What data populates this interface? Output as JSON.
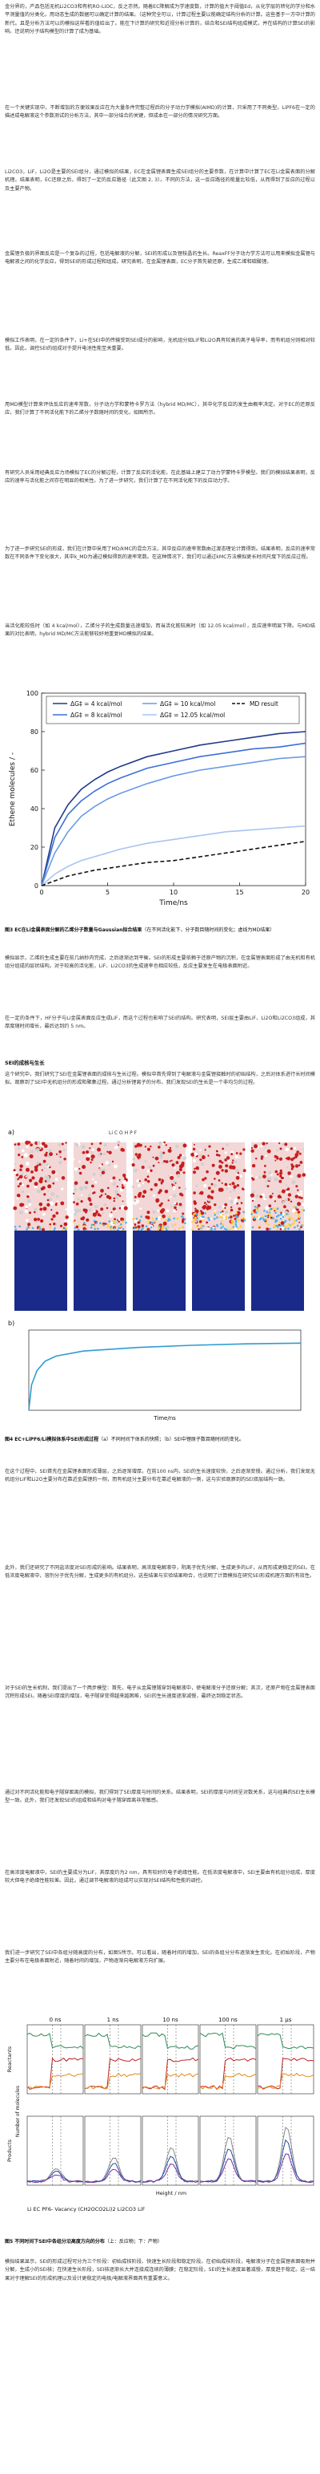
{
  "text": {
    "p1": "金分界的，产品包括无机Li2CO3和有机RO-LiOC，反之亦然。随着EC降解成为学速度数，计算的值大于阈值Ed，从化学层的转化的学分和水平测量值的分类化，用动态生成的数据可以确定计算的结果。（这种完全可以，计算过程主要以能确定结构分析的计算。这些基于一方中计算的新代。且是分析方法可以的模拟这样看的值给出了。能在下计算的研究和近视分析计算的，结合和SEI结构组成模式，并在结构的计算SEI的影响。还说明分子结构模型的计算了成为基础。",
    "p2": "在一个关键实现中，不断增加的方便效果反应在为大量条件完整过程后的分子动力学模拟(AIMD)的计算，只采用了不同类型，LiPF6在一定的描述成电解液这个参数测试的分析方法，其中一部分结合的关键，但成本在一部分的情况研究方面。",
    "p3": "Li2CO3，LiF，Li2O是主要的SEI组分，通过模拟的结果，EC在金属锂表面生成SEI组分的主要参数，在计算中计算了EC在Li金属表面的分解机理。结果表明，EC还原之后，得到了一定的反应路径（此文图 2, 3）。不同的方法，这一反应路径的能量比较低，从而得到了反应的过程以及主要产物。",
    "p4": "金属锂负极的界面反应是一个复杂的过程，包括电解液的分解，SEI的形成以及锂枝晶的生长。ReaxFF分子动力学方法可以用来模拟金属锂与电解液之间的化学反应，得到SEI的形成过程和组成。研究表明，在金属锂表面，EC分子首先被还原，生成乙烯和碳酸锂。",
    "p5": "模拟工作表明，在一定的条件下，Li+在SEI中的传输受到SEI成分的影响，无机组分如LiF和Li2O具有较高的离子电导率，而有机组分则相对较低。因此，调控SEI的组成对于提升电池性能至关重要。",
    "p6": "用MD模型计算来评估反应的速率常数，分子动力学和蒙特卡罗方法（hybrid MD/MC），其中化学反应的发生由概率决定。对于EC的还原反应，我们计算了不同活化能下的乙烯分子数随时间的变化，如图所示。",
    "p7": "有研究人员采用经典反应力场模拟了EC的分解过程，计算了反应的活化能，在此基础上建立了动力学蒙特卡罗模型。我们的模拟结果表明，反应的速率与活化能之间存在明显的相关性。为了进一步研究，我们计算了在不同活化能下的反应动力学。",
    "p8": "为了进一步研究SEI的形成，我们在计算中采用了MD/kMC的混合方法，其中反应的速率常数由过渡态理论计算得到。结果表明，反应的速率常数在不同条件下变化很大，其中k_MD为通过模拟得到的速率常数。在这种情况下，我们可以通过kMC方法模拟更长时间尺度下的反应过程。",
    "p9": "当活化能较低时（如 4 kcal/mol），乙烯分子的生成数量迅速增加，而当活化能较高时（如 12.05 kcal/mol），反应速率明显下降。与MD结果的对比表明，hybrid MD/MC方法能够较好地重复MD模拟的结果。",
    "cap1_bold": "图3 EC在Li金属表面分解的乙烯分子数量与Gaussian拟合结果",
    "cap1": "（在不同活化能下，分子数目随时间的变化；虚线为MD结果）",
    "p10": "模拟显示，乙烯的生成主要在前几纳秒内完成，之后逐渐达到平衡。SEI的形成主要依赖于还原产物的沉积，在金属锂表面形成了由无机和有机组分组成的层状结构。对于较高的活化能，LiF、Li2CO3的生成速率也相应较低，反应主要发生在电极表面附近。",
    "p11": "在一定的条件下，HF分子与Li金属表面反应生成LiF，而这个过程也影响了SEI的结构。研究表明，SEI层主要由LiF、Li2O和Li2CO3组成，其厚度随时间增长，最后达到约 5 nm。",
    "sec2": "SEI的成核与生长",
    "p12": "这个研究中，我们研究了SEI在金属锂表面的成核与生长过程。模拟中首先得到了电解液与金属锂接触时的初始结构，之后对体系进行长时间模拟，观察到了SEI中无机组分的形成和聚集过程。通过分析锂离子的分布，我们发现SEI的生长是一个非均匀的过程。",
    "legend_top": "Li  C  O  H  P  F",
    "panel_a": "a)",
    "panel_b": "b)",
    "cap2_bold": "图4 EC+LiPF6/Li模拟体系中SEI形成过程",
    "cap2": "（a）不同时间下体系的快照；（b）SEI中锂原子数目随时间的变化。",
    "p13": "在这个过程中，SEI首先在金属锂表面形成薄层，之后逐渐增厚。在前100 ns内，SEI的生长速度较快，之后逐渐变慢。通过分析，我们发现无机组分LiF和Li2O主要分布在靠近金属锂的一侧，而有机组分主要分布在靠近电解液的一侧，这与实验观察到的SEI双层结构一致。",
    "p14": "此外，我们还研究了不同盐浓度对SEI形成的影响。结果表明，高浓度电解液中，阴离子优先分解，生成更多的LiF，从而形成更稳定的SEI。在低浓度电解液中，溶剂分子优先分解，生成更多的有机组分。这些结果与实验结果吻合，也说明了计算模拟在研究SEI形成机理方面的有效性。",
    "p15": "对于SEI的生长机制，我们提出了一个两步模型：首先，电子从金属锂隧穿到电解液中，使电解液分子还原分解；其次，还原产物在金属锂表面沉积形成SEI。随着SEI厚度的增加，电子隧穿变得越来越困难，SEI的生长速度逐渐减慢，最终达到稳定状态。",
    "p16": "通过对不同活化能和电子隧穿距离的模拟，我们得到了SEI厚度与时间的关系。结果表明，SEI的厚度与时间呈对数关系，这与经典的SEI生长模型一致。此外，我们还发现SEI的组成和结构对电子隧穿距离非常敏感。",
    "p17": "在高浓度电解液中，SEI的主要成分为LiF，其厚度约为2 nm，具有较好的电子绝缘性能。在低浓度电解液中，SEI主要由有机组分组成，厚度较大但电子绝缘性能较差。因此，通过调节电解液的组成可以实现对SEI结构和性能的调控。",
    "p18": "我们进一步研究了SEI中各组分随高度的分布，如图5所示。可以看出，随着时间的增加，SEI的各组分分布逐渐发生变化。在初始阶段，产物主要分布在电极表面附近，随着时间的增加，产物逐渐向电解液方向扩展。",
    "fig5_times": [
      "0 ns",
      "1 ns",
      "10 ns",
      "100 ns",
      "1 μs"
    ],
    "fig5_row_top": "Reactants",
    "fig5_row_bot": "Products",
    "fig5_ylabel": "Number of molecules",
    "fig5_xlabel": "Height / nm",
    "fig5_legend": "Li  EC  PF6-  Vacancy  (CH2OCO2Li)2  Li2CO3  LiF",
    "cap3_bold": "图5 不同时间下SEI中各组分沿高度方向的分布",
    "cap3": "（上：反应物；下：产物）",
    "p19": "模拟结果显示，SEI的形成过程可分为三个阶段：初始成核阶段、快速生长阶段和稳定阶段。在初始成核阶段，电解液分子在金属锂表面吸附并分解，生成小的SEI核；在快速生长阶段，SEI核逐渐长大并连接成连续的薄膜；在稳定阶段，SEI的生长速度显著减慢，厚度趋于稳定。这一结果对于理解SEI的形成机理以及设计更稳定的电极/电解液界面具有重要意义。"
  },
  "chart_data": {
    "type": "line",
    "title": "",
    "xlabel": "Time/ns",
    "ylabel": "Ethene molecules / -",
    "xlim": [
      0,
      20
    ],
    "ylim": [
      0,
      100
    ],
    "x_ticks": [
      0,
      5,
      10,
      15,
      20
    ],
    "y_ticks": [
      0,
      20,
      40,
      60,
      80,
      100
    ],
    "legend": "top-left",
    "series": [
      {
        "name": "ΔG‡ = 4 kcal/mol",
        "color": "#1f3a8a",
        "style": "solid",
        "x": [
          0,
          1,
          2,
          3,
          4,
          5,
          6,
          8,
          10,
          12,
          14,
          16,
          18,
          20
        ],
        "y": [
          0,
          30,
          42,
          50,
          55,
          59,
          62,
          67,
          70,
          73,
          75,
          77,
          79,
          80
        ]
      },
      {
        "name": "ΔG‡ = 8 kcal/mol",
        "color": "#3b6fd6",
        "style": "solid",
        "x": [
          0,
          1,
          2,
          3,
          4,
          5,
          6,
          8,
          10,
          12,
          14,
          16,
          18,
          20
        ],
        "y": [
          0,
          25,
          37,
          44,
          49,
          53,
          56,
          61,
          64,
          67,
          69,
          71,
          72,
          74
        ]
      },
      {
        "name": "ΔG‡ = 10 kcal/mol",
        "color": "#6b9be6",
        "style": "solid",
        "x": [
          0,
          1,
          2,
          3,
          4,
          5,
          6,
          8,
          10,
          12,
          14,
          16,
          18,
          20
        ],
        "y": [
          0,
          17,
          28,
          36,
          41,
          45,
          48,
          53,
          57,
          60,
          62,
          64,
          66,
          67
        ]
      },
      {
        "name": "ΔG‡ = 12.05 kcal/mol",
        "color": "#a9c4f2",
        "style": "solid",
        "x": [
          0,
          1,
          2,
          3,
          4,
          5,
          6,
          8,
          10,
          12,
          14,
          16,
          18,
          20
        ],
        "y": [
          0,
          6,
          10,
          13,
          15,
          17,
          19,
          22,
          24,
          26,
          28,
          29,
          30,
          31
        ]
      },
      {
        "name": "MD result",
        "color": "#111111",
        "style": "dashed",
        "x": [
          0,
          2,
          4,
          6,
          8,
          10,
          12,
          14,
          16,
          18,
          20
        ],
        "y": [
          0,
          5,
          8,
          10,
          12,
          13,
          15,
          17,
          19,
          21,
          23
        ]
      }
    ]
  },
  "snapshot_chart": {
    "type": "line",
    "xlabel": "Time/ns",
    "ylabel": "",
    "series": [
      {
        "name": "",
        "color": "#2f9bd1",
        "x": [
          0,
          10,
          30,
          60,
          100,
          200,
          400,
          600,
          800,
          1000
        ],
        "y": [
          0,
          0.35,
          0.55,
          0.68,
          0.75,
          0.82,
          0.87,
          0.9,
          0.92,
          0.93
        ]
      }
    ]
  },
  "colors": {
    "li": "#b4c8f0",
    "electrolyte_red": "#c81e1e",
    "anode_blue": "#1a2a8a",
    "series_colors": [
      "#2e8b57",
      "#c02020",
      "#e08a1e",
      "#888888",
      "#1f4aa8",
      "#7a2fa0"
    ]
  }
}
